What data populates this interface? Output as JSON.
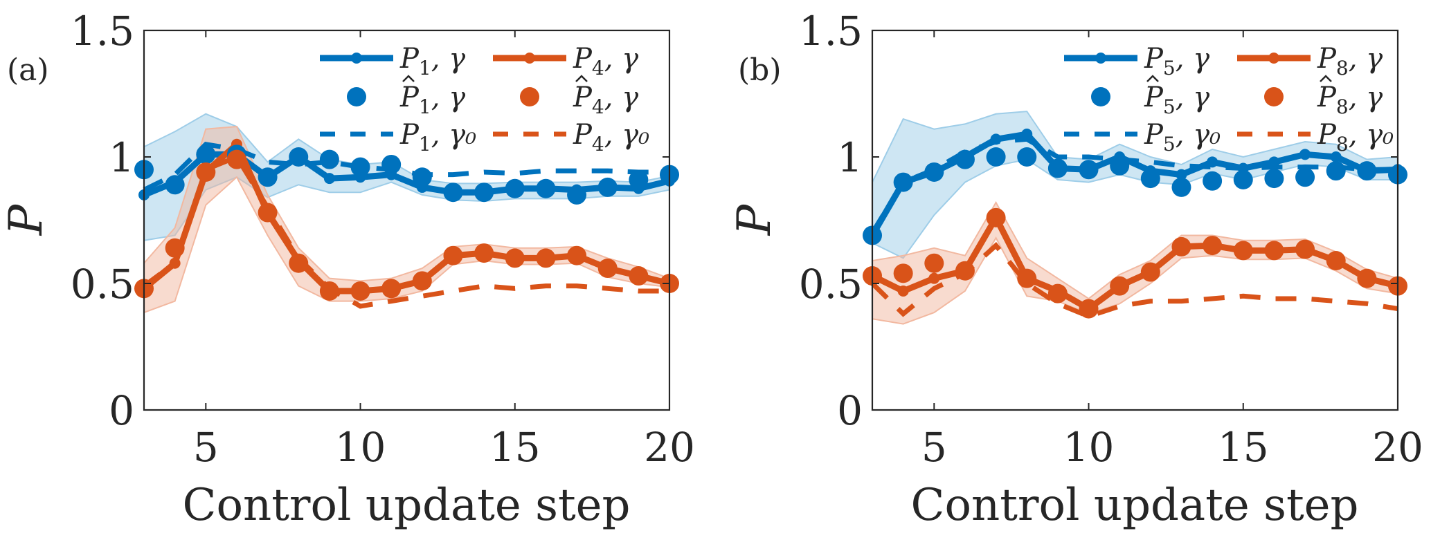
{
  "colors": {
    "blue": "#0072BD",
    "orange": "#D95319",
    "blue_band": "#9ECDE8",
    "orange_band": "#F2B8A0"
  },
  "chart_data": [
    {
      "type": "line",
      "panel_label": "(a)",
      "xlabel": "Control update step",
      "ylabel": "P",
      "xlim": [
        3,
        20
      ],
      "ylim": [
        0,
        1.5
      ],
      "xticks": [
        5,
        10,
        15,
        20
      ],
      "xtick_labels": [
        "5",
        "10",
        "15",
        "20"
      ],
      "yticks": [
        0,
        0.5,
        1,
        1.5
      ],
      "ytick_labels": [
        "0",
        "0.5",
        "1",
        "1.5"
      ],
      "grid": false,
      "legend_position": "top-right",
      "x": [
        3,
        4,
        5,
        6,
        7,
        8,
        9,
        10,
        11,
        12,
        13,
        14,
        15,
        16,
        17,
        18,
        19,
        20
      ],
      "series": [
        {
          "name": "P1, γ",
          "label_main": "P",
          "label_sub": "1",
          "label_hat": false,
          "label_gamma": "γ",
          "color": "blue",
          "style": "solid-marker",
          "values": [
            0.85,
            0.9,
            1.01,
            1.01,
            0.92,
            1.0,
            0.915,
            0.92,
            0.93,
            0.88,
            0.86,
            0.86,
            0.875,
            0.875,
            0.87,
            0.88,
            0.875,
            0.905
          ],
          "band_upper": [
            1.04,
            1.1,
            1.17,
            1.12,
            0.98,
            1.07,
            0.99,
            0.97,
            0.98,
            0.91,
            0.895,
            0.895,
            0.9,
            0.9,
            0.9,
            0.905,
            0.9,
            0.925
          ],
          "band_lower": [
            0.67,
            0.69,
            0.87,
            0.92,
            0.84,
            0.89,
            0.86,
            0.86,
            0.9,
            0.85,
            0.83,
            0.825,
            0.835,
            0.835,
            0.835,
            0.845,
            0.845,
            0.87
          ]
        },
        {
          "name": "P4, γ",
          "label_main": "P",
          "label_sub": "4",
          "label_hat": false,
          "label_gamma": "γ",
          "color": "orange",
          "style": "solid-marker",
          "values": [
            0.48,
            0.58,
            0.94,
            1.05,
            0.78,
            0.59,
            0.47,
            0.47,
            0.48,
            0.51,
            0.61,
            0.62,
            0.6,
            0.6,
            0.61,
            0.56,
            0.53,
            0.5
          ],
          "band_upper": [
            0.58,
            0.72,
            1.11,
            1.12,
            0.85,
            0.64,
            0.52,
            0.51,
            0.52,
            0.56,
            0.645,
            0.655,
            0.64,
            0.64,
            0.645,
            0.6,
            0.565,
            0.52
          ],
          "band_lower": [
            0.385,
            0.43,
            0.81,
            0.92,
            0.69,
            0.49,
            0.43,
            0.43,
            0.44,
            0.47,
            0.575,
            0.59,
            0.575,
            0.575,
            0.58,
            0.525,
            0.5,
            0.485
          ]
        },
        {
          "name": "P̂1, γ",
          "label_main": "P",
          "label_sub": "1",
          "label_hat": true,
          "label_gamma": "γ",
          "color": "blue",
          "style": "marker",
          "values": [
            0.95,
            0.89,
            1.01,
            1.01,
            0.92,
            1.0,
            0.99,
            0.96,
            0.97,
            0.92,
            0.86,
            0.86,
            0.875,
            0.875,
            0.85,
            0.88,
            0.91,
            0.93
          ]
        },
        {
          "name": "P̂4, γ",
          "label_main": "P",
          "label_sub": "4",
          "label_hat": true,
          "label_gamma": "γ",
          "color": "orange",
          "style": "marker",
          "values": [
            0.48,
            0.64,
            0.94,
            0.99,
            0.78,
            0.58,
            0.47,
            0.47,
            0.48,
            0.51,
            0.61,
            0.62,
            0.6,
            0.6,
            0.61,
            0.56,
            0.53,
            0.5
          ]
        },
        {
          "name": "P1, γ0",
          "label_main": "P",
          "label_sub": "1",
          "label_hat": false,
          "label_gamma": "γ₀",
          "color": "blue",
          "style": "dashed",
          "values": [
            0.87,
            0.93,
            1.05,
            1.03,
            0.98,
            0.97,
            0.98,
            0.96,
            0.95,
            0.93,
            0.93,
            0.94,
            0.935,
            0.945,
            0.945,
            0.945,
            0.94,
            0.94
          ]
        },
        {
          "name": "P4, γ0",
          "label_main": "P",
          "label_sub": "4",
          "label_hat": false,
          "label_gamma": "γ₀",
          "color": "orange",
          "style": "dashed",
          "values": [
            0.49,
            0.58,
            0.95,
            1.0,
            0.8,
            0.6,
            0.48,
            0.41,
            0.43,
            0.45,
            0.47,
            0.49,
            0.48,
            0.49,
            0.49,
            0.48,
            0.47,
            0.47
          ]
        }
      ]
    },
    {
      "type": "line",
      "panel_label": "(b)",
      "xlabel": "Control update step",
      "ylabel": "P",
      "xlim": [
        3,
        20
      ],
      "ylim": [
        0,
        1.5
      ],
      "xticks": [
        5,
        10,
        15,
        20
      ],
      "xtick_labels": [
        "5",
        "10",
        "15",
        "20"
      ],
      "yticks": [
        0,
        0.5,
        1,
        1.5
      ],
      "ytick_labels": [
        "0",
        "0.5",
        "1",
        "1.5"
      ],
      "grid": false,
      "legend_position": "top-right",
      "x": [
        3,
        4,
        5,
        6,
        7,
        8,
        9,
        10,
        11,
        12,
        13,
        14,
        15,
        16,
        17,
        18,
        19,
        20
      ],
      "series": [
        {
          "name": "P5, γ",
          "label_main": "P",
          "label_sub": "5",
          "label_hat": false,
          "label_gamma": "γ",
          "color": "blue",
          "style": "solid-marker",
          "values": [
            0.69,
            0.9,
            0.94,
            1.0,
            1.07,
            1.09,
            0.955,
            0.95,
            1.0,
            0.945,
            0.93,
            0.98,
            0.955,
            0.98,
            1.01,
            1.0,
            0.945,
            0.95
          ],
          "band_upper": [
            0.9,
            1.15,
            1.11,
            1.13,
            1.17,
            1.18,
            1.0,
            0.99,
            1.05,
            1.0,
            0.97,
            1.03,
            1.0,
            1.03,
            1.06,
            1.05,
            0.99,
            1.0
          ],
          "band_lower": [
            0.66,
            0.6,
            0.77,
            0.9,
            0.965,
            0.99,
            0.91,
            0.9,
            0.93,
            0.9,
            0.89,
            0.935,
            0.91,
            0.94,
            0.97,
            0.96,
            0.91,
            0.91
          ]
        },
        {
          "name": "P8, γ",
          "label_main": "P",
          "label_sub": "8",
          "label_hat": false,
          "label_gamma": "γ",
          "color": "orange",
          "style": "solid-marker",
          "values": [
            0.53,
            0.47,
            0.52,
            0.55,
            0.76,
            0.52,
            0.47,
            0.4,
            0.49,
            0.545,
            0.645,
            0.65,
            0.63,
            0.63,
            0.635,
            0.59,
            0.52,
            0.49
          ],
          "band_upper": [
            0.59,
            0.61,
            0.64,
            0.61,
            0.82,
            0.6,
            0.52,
            0.44,
            0.535,
            0.59,
            0.69,
            0.69,
            0.67,
            0.67,
            0.675,
            0.625,
            0.555,
            0.52
          ],
          "band_lower": [
            0.36,
            0.34,
            0.385,
            0.47,
            0.68,
            0.45,
            0.43,
            0.38,
            0.42,
            0.5,
            0.6,
            0.61,
            0.595,
            0.595,
            0.6,
            0.55,
            0.48,
            0.46
          ]
        },
        {
          "name": "P̂5, γ",
          "label_main": "P",
          "label_sub": "5",
          "label_hat": true,
          "label_gamma": "γ",
          "color": "blue",
          "style": "marker",
          "values": [
            0.69,
            0.9,
            0.94,
            0.99,
            1.0,
            1.0,
            0.955,
            0.95,
            0.965,
            0.915,
            0.88,
            0.905,
            0.91,
            0.915,
            0.92,
            0.945,
            0.945,
            0.93
          ]
        },
        {
          "name": "P̂8, γ",
          "label_main": "P",
          "label_sub": "8",
          "label_hat": true,
          "label_gamma": "γ",
          "color": "orange",
          "style": "marker",
          "values": [
            0.53,
            0.54,
            0.58,
            0.55,
            0.76,
            0.52,
            0.46,
            0.4,
            0.49,
            0.545,
            0.645,
            0.65,
            0.63,
            0.63,
            0.635,
            0.59,
            0.52,
            0.49
          ]
        },
        {
          "name": "P5, γ0",
          "label_main": "P",
          "label_sub": "5",
          "label_hat": false,
          "label_gamma": "γ₀",
          "color": "blue",
          "style": "dashed",
          "values": [
            0.7,
            0.9,
            0.95,
            1.02,
            1.06,
            1.07,
            1.0,
            1.0,
            0.99,
            0.98,
            0.965,
            0.96,
            0.955,
            0.96,
            0.96,
            0.96,
            0.95,
            0.95
          ]
        },
        {
          "name": "P8, γ0",
          "label_main": "P",
          "label_sub": "8",
          "label_hat": false,
          "label_gamma": "γ₀",
          "color": "orange",
          "style": "dashed",
          "values": [
            0.5,
            0.38,
            0.48,
            0.54,
            0.65,
            0.5,
            0.42,
            0.37,
            0.41,
            0.43,
            0.43,
            0.44,
            0.45,
            0.44,
            0.44,
            0.43,
            0.42,
            0.4
          ]
        }
      ]
    }
  ]
}
